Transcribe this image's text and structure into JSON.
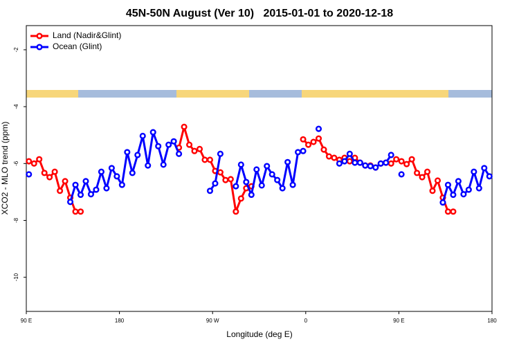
{
  "chart_data": {
    "type": "line",
    "title": "45N-50N August (Ver 10)   2015-01-01 to 2020-12-18",
    "x_label": "Longitude (deg E)",
    "y_label": "XCO2 - MLO trend (ppm)",
    "xlim": [
      90,
      540
    ],
    "xticks": [
      {
        "value": 90,
        "label": "90 E"
      },
      180,
      {
        "value": 270,
        "label": "90 W"
      },
      {
        "value": 360,
        "label": "0"
      },
      {
        "value": 450,
        "label": "90 E"
      },
      {
        "value": 540,
        "label": "180"
      }
    ],
    "ylim": [
      -11.2,
      -1.15
    ],
    "yticks": [
      -2,
      -4,
      -6,
      -8,
      -10
    ],
    "legend": "top-left",
    "x": [
      92.5,
      97.5,
      102.5,
      107.5,
      112.5,
      117.5,
      122.5,
      127.5,
      132.5,
      137.5,
      142.5,
      147.5,
      152.5,
      157.5,
      162.5,
      167.5,
      172.5,
      177.5,
      182.5,
      187.5,
      192.5,
      197.5,
      202.5,
      207.5,
      212.5,
      217.5,
      222.5,
      227.5,
      232.5,
      237.5,
      242.5,
      247.5,
      252.5,
      257.5,
      262.5,
      267.5,
      272.5,
      277.5,
      282.5,
      287.5,
      292.5,
      297.5,
      302.5,
      307.5,
      312.5,
      317.5,
      322.5,
      327.5,
      332.5,
      337.5,
      342.5,
      347.5,
      352.5,
      357.5,
      362.5,
      367.5,
      372.5,
      377.5,
      382.5,
      387.5,
      392.5,
      397.5,
      402.5,
      407.5,
      412.5,
      417.5,
      422.5,
      427.5,
      432.5,
      437.5,
      442.5,
      447.5,
      452.5,
      457.5,
      462.5,
      467.5,
      472.5,
      477.5,
      482.5,
      487.5,
      492.5,
      497.5,
      502.5,
      507.5,
      512.5,
      517.5,
      522.5,
      527.5,
      532.5,
      537.5
    ],
    "series": [
      {
        "name": "Land (Nadir&Glint)",
        "color": "#ff0000",
        "values": [
          -5.92,
          -6.0,
          -5.85,
          -6.33,
          -6.48,
          -6.29,
          -6.96,
          -6.62,
          -7.2,
          -7.69,
          -7.69,
          null,
          null,
          null,
          null,
          null,
          null,
          null,
          null,
          null,
          null,
          null,
          null,
          null,
          null,
          null,
          null,
          null,
          null,
          -5.44,
          -4.71,
          -5.34,
          -5.56,
          -5.49,
          -5.87,
          -5.87,
          -6.26,
          -6.31,
          -6.58,
          -6.55,
          -7.69,
          -7.23,
          -6.87,
          -6.8,
          null,
          null,
          null,
          null,
          null,
          null,
          null,
          null,
          null,
          -5.15,
          -5.34,
          -5.24,
          -5.12,
          -5.51,
          -5.75,
          -5.8,
          -5.87,
          -5.8,
          -5.92,
          -5.8,
          -5.97,
          -6.07,
          -6.07,
          -6.14,
          -6.0,
          -5.97,
          -6.0,
          -5.85,
          -5.92,
          -6.02,
          -5.85,
          -6.33,
          -6.48,
          -6.29,
          -6.96,
          -6.6,
          -7.2,
          -7.69,
          -7.69,
          null,
          null,
          null,
          null,
          null,
          null,
          null
        ]
      },
      {
        "name": "Ocean (Glint)",
        "color": "#0000ff",
        "values": [
          -6.38,
          null,
          null,
          null,
          null,
          null,
          null,
          null,
          -7.35,
          -6.75,
          -7.1,
          -6.62,
          -7.08,
          -6.92,
          -6.29,
          -6.87,
          -6.16,
          -6.45,
          -6.75,
          -5.6,
          -6.33,
          -5.7,
          -5.03,
          -6.07,
          -4.9,
          -5.39,
          -6.04,
          -5.34,
          -5.22,
          -5.66,
          null,
          null,
          null,
          null,
          null,
          -6.96,
          -6.7,
          -5.66,
          null,
          null,
          -6.8,
          -6.04,
          -6.65,
          -7.1,
          -6.21,
          -6.77,
          -6.09,
          -6.38,
          -6.58,
          -6.87,
          -5.95,
          -6.75,
          -5.6,
          -5.56,
          null,
          null,
          -4.78,
          null,
          null,
          null,
          -6.0,
          -5.92,
          -5.66,
          -5.97,
          -5.97,
          -6.07,
          -6.09,
          -6.14,
          -6.0,
          -5.97,
          -5.7,
          null,
          -6.38,
          null,
          null,
          null,
          null,
          null,
          null,
          null,
          -7.37,
          -6.75,
          -7.1,
          -6.62,
          -7.08,
          -6.92,
          -6.29,
          -6.87,
          -6.16,
          -6.45
        ]
      }
    ]
  }
}
